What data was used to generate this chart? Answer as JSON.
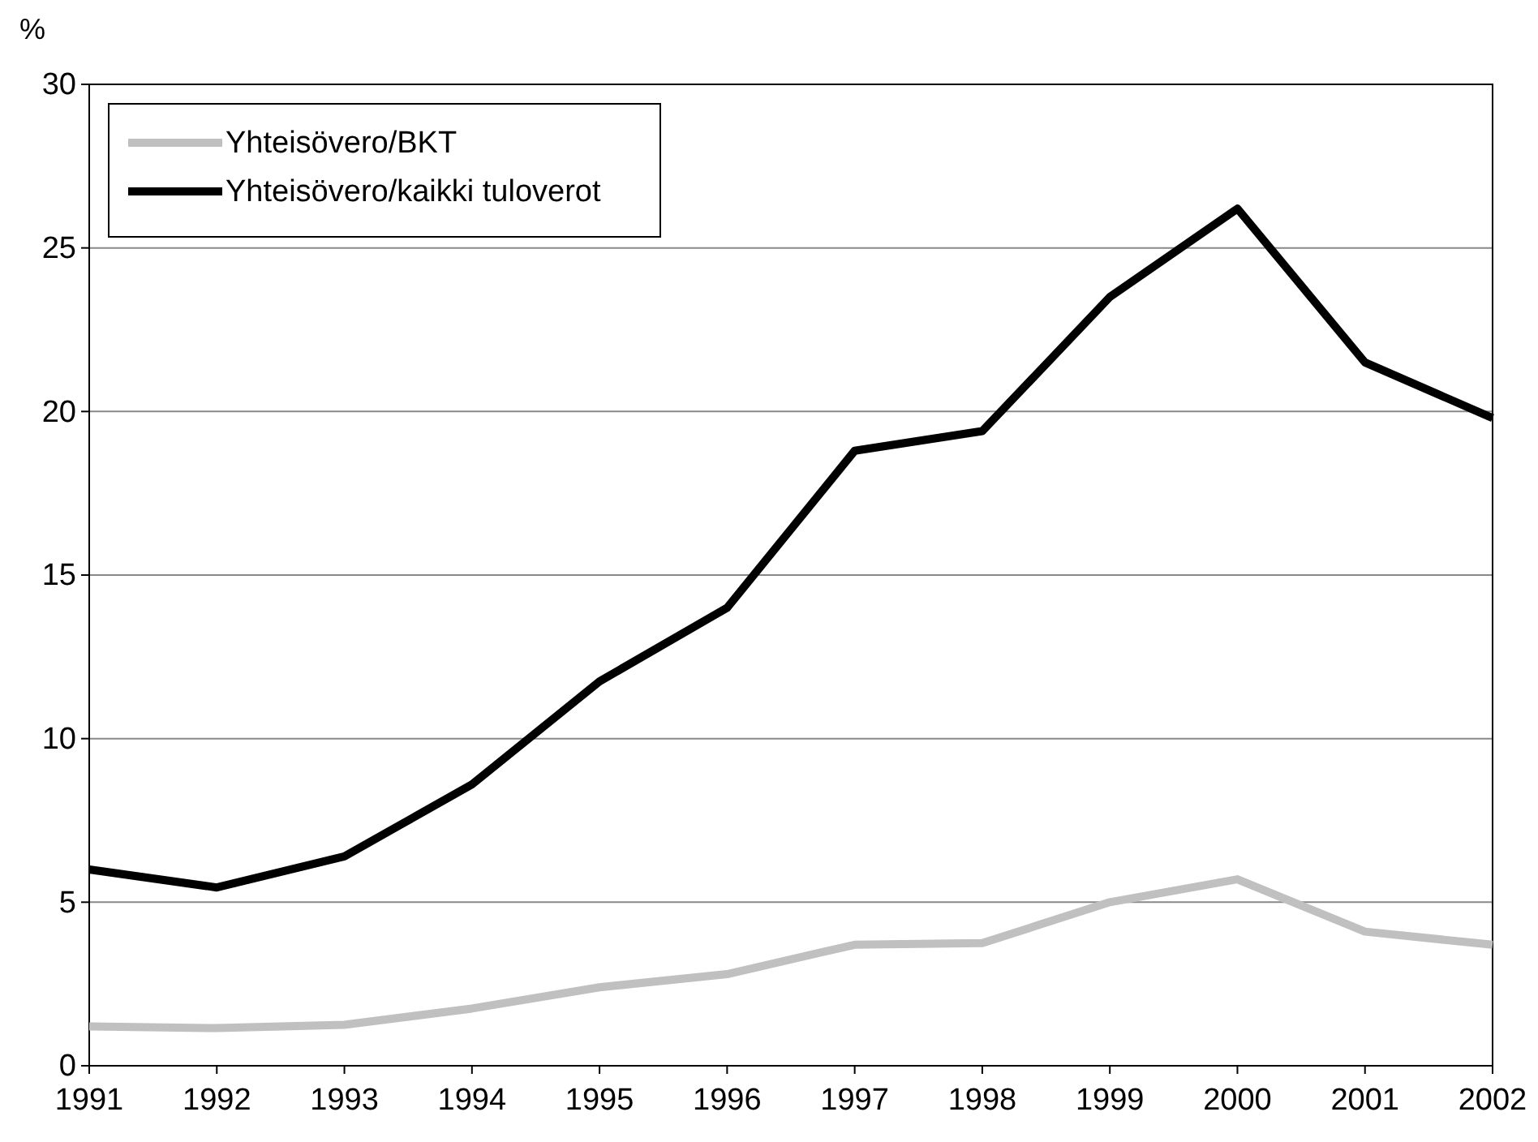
{
  "chart_data": {
    "type": "line",
    "ylabel": "%",
    "x": [
      1991,
      1992,
      1993,
      1994,
      1995,
      1996,
      1997,
      1998,
      1999,
      2000,
      2001,
      2002
    ],
    "xlim": [
      1991,
      2002
    ],
    "xticks": [
      1991,
      1992,
      1993,
      1994,
      1995,
      1996,
      1997,
      1998,
      1999,
      2000,
      2001,
      2002
    ],
    "ylim": [
      0,
      30
    ],
    "yticks": [
      0,
      5,
      10,
      15,
      20,
      25,
      30
    ],
    "grid": "y",
    "legend": "top left",
    "marker": "none",
    "line_style": "solid",
    "series": [
      {
        "name": "Yhteisövero/BKT",
        "color": "#c0c0c0",
        "values": [
          1.2,
          1.15,
          1.25,
          1.75,
          2.4,
          2.8,
          3.7,
          3.75,
          5.0,
          5.7,
          4.1,
          3.7
        ]
      },
      {
        "name": "Yhteisövero/kaikki tuloverot",
        "color": "#000000",
        "values": [
          6.0,
          5.45,
          6.4,
          8.6,
          11.75,
          14.0,
          18.8,
          19.4,
          23.5,
          26.2,
          21.5,
          19.8
        ]
      }
    ]
  }
}
